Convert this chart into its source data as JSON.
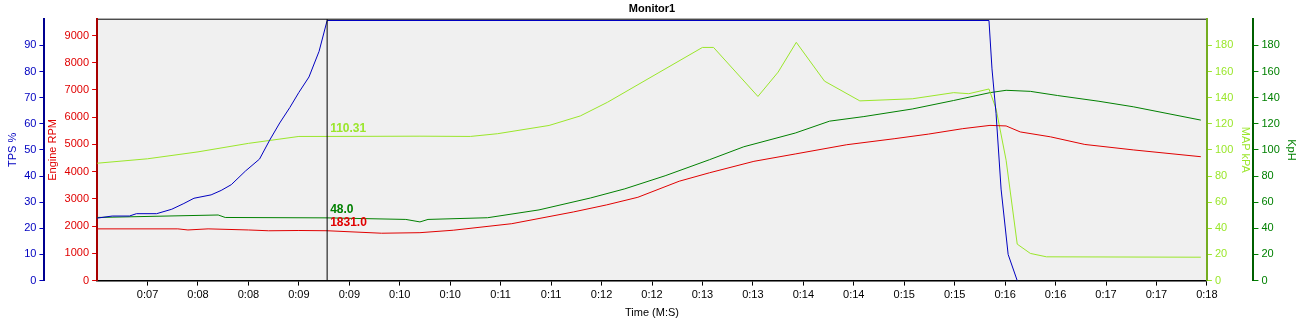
{
  "chart_data": {
    "type": "line",
    "title": "Monitor1",
    "xlabel": "Time (M:S)",
    "ylabel": "TPS %",
    "y3label": "Engine RPM",
    "y2label": "MAP kPA",
    "annotations": [
      "KpH",
      "0",
      "20",
      "40",
      "60",
      "80",
      "100",
      "120",
      "140",
      "160",
      "180"
    ],
    "xlim": [
      6.5,
      17.5
    ],
    "xticks": [
      {
        "value": 7.0,
        "label": "0:07"
      },
      {
        "value": 7.5,
        "label": "0:08"
      },
      {
        "value": 8.0,
        "label": "0:08"
      },
      {
        "value": 8.5,
        "label": "0:09"
      },
      {
        "value": 9.0,
        "label": "0:09"
      },
      {
        "value": 9.5,
        "label": "0:10"
      },
      {
        "value": 10.0,
        "label": "0:10"
      },
      {
        "value": 10.5,
        "label": "0:11"
      },
      {
        "value": 11.0,
        "label": "0:11"
      },
      {
        "value": 11.5,
        "label": "0:12"
      },
      {
        "value": 12.0,
        "label": "0:12"
      },
      {
        "value": 12.5,
        "label": "0:13"
      },
      {
        "value": 13.0,
        "label": "0:13"
      },
      {
        "value": 13.5,
        "label": "0:14"
      },
      {
        "value": 14.0,
        "label": "0:14"
      },
      {
        "value": 14.5,
        "label": "0:15"
      },
      {
        "value": 15.0,
        "label": "0:15"
      },
      {
        "value": 15.5,
        "label": "0:16"
      },
      {
        "value": 16.0,
        "label": "0:16"
      },
      {
        "value": 16.5,
        "label": "0:17"
      },
      {
        "value": 17.0,
        "label": "0:17"
      },
      {
        "value": 17.5,
        "label": "0:18"
      }
    ],
    "ylim": [
      0,
      100
    ],
    "yticks": [
      0,
      10,
      20,
      30,
      40,
      50,
      60,
      70,
      80,
      90
    ],
    "y3lim": [
      0,
      9600
    ],
    "y3ticks": [
      0,
      1000,
      2000,
      3000,
      4000,
      5000,
      6000,
      7000,
      8000,
      9000
    ],
    "y2lim": [
      0,
      200
    ],
    "y2ticks": [
      0,
      20,
      40,
      60,
      80,
      100,
      120,
      140,
      160,
      180
    ],
    "grid": false,
    "legend": false,
    "marker": "none",
    "line_style": "solid",
    "ref_lines": [
      {
        "axis": "x",
        "value": 8.78,
        "color": "#000000"
      }
    ],
    "series": [
      {
        "axis": "y",
        "color": "#0000c0",
        "x": [
          6.5,
          6.65,
          6.82,
          6.89,
          7.09,
          7.24,
          7.36,
          7.46,
          7.63,
          7.73,
          7.83,
          7.97,
          8.11,
          8.21,
          8.31,
          8.41,
          8.5,
          8.6,
          8.7,
          8.78,
          15.34,
          15.37,
          15.41,
          15.46,
          15.53,
          15.62
        ],
        "values": [
          23.9,
          24.7,
          24.7,
          25.6,
          25.6,
          27.3,
          29.5,
          31.5,
          32.8,
          34.5,
          36.7,
          41.9,
          46.5,
          53.7,
          60.3,
          66.2,
          72.0,
          77.9,
          87.7,
          99.5,
          99.5,
          81,
          64,
          35,
          10,
          0
        ]
      },
      {
        "axis": "y3",
        "color": "#e00000",
        "x": [
          6.5,
          7.3,
          7.4,
          7.6,
          8.0,
          8.2,
          8.5,
          8.78,
          9.32,
          9.7,
          10.03,
          10.61,
          11.22,
          11.55,
          11.86,
          12.27,
          12.57,
          13.01,
          13.42,
          13.93,
          14.4,
          14.74,
          15.08,
          15.35,
          15.51,
          15.65,
          15.95,
          16.29,
          16.77,
          17.44
        ],
        "values": [
          1900,
          1900,
          1860,
          1900,
          1860,
          1830,
          1840,
          1831,
          1740,
          1760,
          1850,
          2090,
          2520,
          2780,
          3060,
          3650,
          3960,
          4380,
          4650,
          4990,
          5210,
          5380,
          5580,
          5700,
          5680,
          5460,
          5280,
          5000,
          4800,
          4550
        ],
        "value_labels": [
          null,
          null,
          null,
          null,
          null,
          null,
          null,
          "1831.0",
          null,
          null,
          null,
          null,
          null,
          null,
          null,
          null,
          null,
          null,
          null,
          null,
          null,
          null,
          null,
          null,
          null,
          null,
          null,
          null,
          null,
          null
        ]
      },
      {
        "axis": "y2",
        "color": "#9ae62a",
        "x": [
          6.5,
          7.0,
          7.5,
          8.0,
          8.5,
          8.78,
          9.7,
          10.2,
          10.47,
          10.98,
          11.29,
          11.56,
          12.06,
          12.5,
          12.61,
          13.05,
          13.25,
          13.43,
          13.71,
          14.06,
          14.58,
          14.99,
          15.14,
          15.34,
          15.41,
          15.51,
          15.62,
          15.75,
          15.91,
          17.44
        ],
        "values": [
          89.8,
          93.2,
          98.5,
          105,
          110.3,
          110.31,
          110.5,
          110.3,
          112.4,
          118.7,
          126,
          136.5,
          158.8,
          178.4,
          178.4,
          140.9,
          159.5,
          182.3,
          152.6,
          137.5,
          139.1,
          143.8,
          143,
          146.6,
          131.5,
          92.1,
          27.9,
          20.8,
          18.2,
          17.9
        ],
        "value_labels": [
          null,
          null,
          null,
          null,
          null,
          "110.31",
          null,
          null,
          null,
          null,
          null,
          null,
          null,
          null,
          null,
          null,
          null,
          null,
          null,
          null,
          null,
          null,
          null,
          null,
          null,
          null,
          null,
          null,
          null,
          null
        ]
      },
      {
        "axis": "y2",
        "color": "#008000",
        "x": [
          6.5,
          7.7,
          7.77,
          8.78,
          9.56,
          9.7,
          9.78,
          10.37,
          10.88,
          11.39,
          11.73,
          12.13,
          12.57,
          12.91,
          13.42,
          13.76,
          14.1,
          14.58,
          14.99,
          15.35,
          15.51,
          15.75,
          16.02,
          16.43,
          16.77,
          17.44
        ],
        "values": [
          48.3,
          50.2,
          48.3,
          48.0,
          46.8,
          44.9,
          46.8,
          48.1,
          54.1,
          63.2,
          70.2,
          80.2,
          92.5,
          102.4,
          112.9,
          122,
          125.5,
          131.3,
          137.8,
          143.8,
          145.6,
          144.8,
          141.6,
          137.2,
          133,
          122.8
        ],
        "value_labels": [
          null,
          null,
          null,
          "48.0",
          null,
          null,
          null,
          null,
          null,
          null,
          null,
          null,
          null,
          null,
          null,
          null,
          null,
          null,
          null,
          null,
          null,
          null,
          null,
          null,
          null,
          null
        ]
      }
    ]
  }
}
